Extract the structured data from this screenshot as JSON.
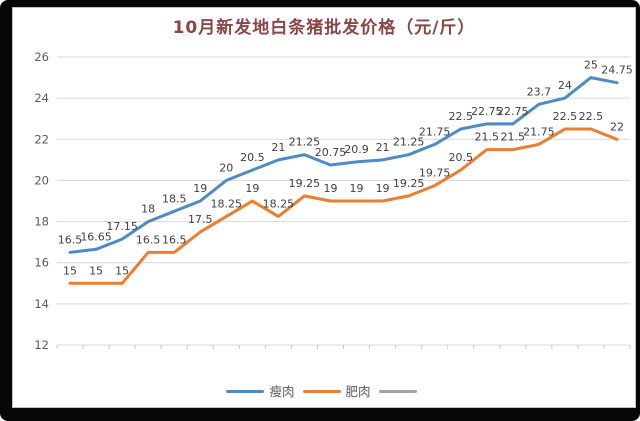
{
  "title": "10月新发地白条猪批发价格（元/斤）",
  "chart_data": {
    "type": "line",
    "title": "10月新发地白条猪批发价格（元/斤）",
    "x_axis": {
      "labels_visible": false,
      "tick_marks": true,
      "point_count": 22
    },
    "ylim": [
      12,
      26
    ],
    "y_ticks": [
      12,
      14,
      16,
      18,
      20,
      22,
      24,
      26
    ],
    "grid": true,
    "legend_position": "bottom",
    "data_labels_visible": true,
    "series": [
      {
        "name": "瘦肉",
        "color": "#4d8bc8",
        "values": [
          16.5,
          16.65,
          17.15,
          18,
          18.5,
          19,
          20,
          20.5,
          21,
          21.25,
          20.75,
          20.9,
          21,
          21.25,
          21.75,
          22.5,
          22.75,
          22.75,
          23.7,
          24,
          25,
          24.75
        ]
      },
      {
        "name": "肥肉",
        "color": "#ed7d31",
        "values": [
          15,
          15,
          15,
          16.5,
          16.5,
          17.5,
          18.25,
          19,
          18.25,
          19.25,
          19,
          19,
          19,
          19.25,
          19.75,
          20.5,
          21.5,
          21.5,
          21.75,
          22.5,
          22.5,
          22
        ]
      },
      {
        "name": "",
        "color": "#a5a5a5",
        "values": []
      }
    ],
    "style": {
      "gridline_color": "#d9d9d9",
      "axis_label_color": "#595959",
      "data_label_color": "#404040",
      "title_color": "#8b4543",
      "frame_color": "#070707",
      "card_border_color": "#c2c2c2"
    }
  }
}
